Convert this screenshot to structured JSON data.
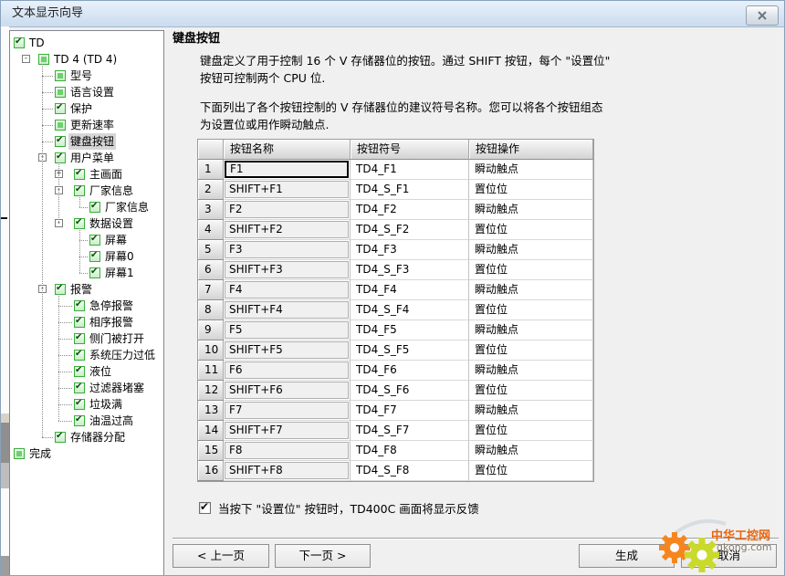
{
  "window": {
    "title": "文本显示向导"
  },
  "content": {
    "heading": "键盘按钮",
    "intro1_l1": "键盘定义了用于控制 16 个 V 存储器位的按钮。通过 SHIFT 按钮，每个 \"设置位\"",
    "intro1_l2": "按钮可控制两个 CPU 位.",
    "intro2_l1": "下面列出了各个按钮控制的 V 存储器位的建议符号名称。您可以将各个按钮组态",
    "intro2_l2": "为设置位或用作瞬动触点."
  },
  "tree": {
    "items": [
      {
        "label": "TD",
        "level": 0,
        "icon": "check",
        "expander": null,
        "selected": false
      },
      {
        "label": "TD 4 (TD 4)",
        "level": 1,
        "icon": "square",
        "expander": "minus",
        "selected": false
      },
      {
        "label": "型号",
        "level": 2,
        "icon": "square",
        "expander": null,
        "selected": false
      },
      {
        "label": "语言设置",
        "level": 2,
        "icon": "square",
        "expander": null,
        "selected": false
      },
      {
        "label": "保护",
        "level": 2,
        "icon": "check",
        "expander": null,
        "selected": false
      },
      {
        "label": "更新速率",
        "level": 2,
        "icon": "square",
        "expander": null,
        "selected": false
      },
      {
        "label": "键盘按钮",
        "level": 2,
        "icon": "check",
        "expander": null,
        "selected": true
      },
      {
        "label": "用户菜单",
        "level": 2,
        "icon": "check",
        "expander": "minus",
        "selected": false
      },
      {
        "label": "主画面",
        "level": 3,
        "icon": "check",
        "expander": "plus",
        "selected": false
      },
      {
        "label": "厂家信息",
        "level": 3,
        "icon": "check",
        "expander": "minus",
        "selected": false
      },
      {
        "label": "厂家信息",
        "level": 4,
        "icon": "check",
        "expander": null,
        "selected": false
      },
      {
        "label": "数据设置",
        "level": 3,
        "icon": "check",
        "expander": "minus",
        "selected": false
      },
      {
        "label": "屏幕",
        "level": 4,
        "icon": "check",
        "expander": null,
        "selected": false
      },
      {
        "label": "屏幕0",
        "level": 4,
        "icon": "check",
        "expander": null,
        "selected": false
      },
      {
        "label": "屏幕1",
        "level": 4,
        "icon": "check",
        "expander": null,
        "selected": false
      },
      {
        "label": "报警",
        "level": 2,
        "icon": "check",
        "expander": "minus",
        "selected": false
      },
      {
        "label": "急停报警",
        "level": 3,
        "icon": "check",
        "expander": null,
        "selected": false
      },
      {
        "label": "相序报警",
        "level": 3,
        "icon": "check",
        "expander": null,
        "selected": false
      },
      {
        "label": "侧门被打开",
        "level": 3,
        "icon": "check",
        "expander": null,
        "selected": false
      },
      {
        "label": "系统压力过低",
        "level": 3,
        "icon": "check",
        "expander": null,
        "selected": false,
        "clip": true
      },
      {
        "label": "液位",
        "level": 3,
        "icon": "check",
        "expander": null,
        "selected": false
      },
      {
        "label": "过滤器堵塞",
        "level": 3,
        "icon": "check",
        "expander": null,
        "selected": false
      },
      {
        "label": "垃圾满",
        "level": 3,
        "icon": "check",
        "expander": null,
        "selected": false
      },
      {
        "label": "油温过高",
        "level": 3,
        "icon": "check",
        "expander": null,
        "selected": false
      },
      {
        "label": "存储器分配",
        "level": 2,
        "icon": "check",
        "expander": null,
        "selected": false
      },
      {
        "label": "完成",
        "level": 0,
        "icon": "square",
        "expander": null,
        "selected": false
      }
    ]
  },
  "table": {
    "headers": [
      "",
      "按钮名称",
      "按钮符号",
      "按钮操作"
    ],
    "rows": [
      [
        "1",
        "F1",
        "TD4_F1",
        "瞬动触点"
      ],
      [
        "2",
        "SHIFT+F1",
        "TD4_S_F1",
        "置位位"
      ],
      [
        "3",
        "F2",
        "TD4_F2",
        "瞬动触点"
      ],
      [
        "4",
        "SHIFT+F2",
        "TD4_S_F2",
        "置位位"
      ],
      [
        "5",
        "F3",
        "TD4_F3",
        "瞬动触点"
      ],
      [
        "6",
        "SHIFT+F3",
        "TD4_S_F3",
        "置位位"
      ],
      [
        "7",
        "F4",
        "TD4_F4",
        "瞬动触点"
      ],
      [
        "8",
        "SHIFT+F4",
        "TD4_S_F4",
        "置位位"
      ],
      [
        "9",
        "F5",
        "TD4_F5",
        "瞬动触点"
      ],
      [
        "10",
        "SHIFT+F5",
        "TD4_S_F5",
        "置位位"
      ],
      [
        "11",
        "F6",
        "TD4_F6",
        "瞬动触点"
      ],
      [
        "12",
        "SHIFT+F6",
        "TD4_S_F6",
        "置位位"
      ],
      [
        "13",
        "F7",
        "TD4_F7",
        "瞬动触点"
      ],
      [
        "14",
        "SHIFT+F7",
        "TD4_S_F7",
        "置位位"
      ],
      [
        "15",
        "F8",
        "TD4_F8",
        "瞬动触点"
      ],
      [
        "16",
        "SHIFT+F8",
        "TD4_S_F8",
        "置位位"
      ]
    ],
    "focused_row": 0
  },
  "feedback": {
    "checked": true,
    "label": "当按下 \"设置位\" 按钮时，TD400C 画面将显示反馈"
  },
  "nav": {
    "prev": "< 上一页",
    "next": "下一页 >",
    "generate": "生成",
    "cancel": "取消"
  },
  "watermark": {
    "title": "中华工控网",
    "domain": "gkong.com",
    "colors": {
      "gear_orange": "#f5861f",
      "gear_green": "#cada2a",
      "title": "#e8650d"
    }
  },
  "colors": {
    "tree_check_green": "#38ad38",
    "titlebar_blue": "#d6e4f3",
    "selection_gray": "#d6d6d6"
  }
}
